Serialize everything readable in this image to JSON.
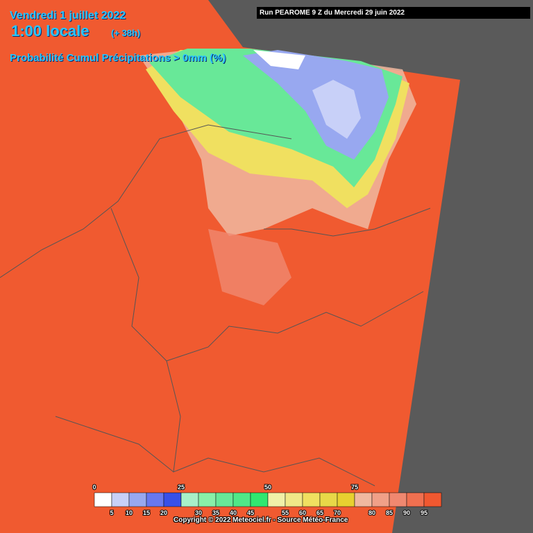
{
  "header": {
    "date": "Vendredi 1 juillet 2022",
    "time": "1:00 locale",
    "lead": "(+ 38h)",
    "product": "Probabilité Cumul Précipitations > 0mm (%)",
    "run": "Run PEAROME 9 Z du Mercredi 29 juin 2022"
  },
  "legend": {
    "colors": [
      "#ffffff",
      "#c8d0f8",
      "#98a8f0",
      "#6878f0",
      "#3850e8",
      "#a8f0c8",
      "#88f0a8",
      "#68e898",
      "#50e888",
      "#30e870",
      "#f0f0a8",
      "#f0e888",
      "#f0e060",
      "#e8d848",
      "#e8d030",
      "#f0b8a0",
      "#f0a088",
      "#f08870",
      "#f07050",
      "#f05830"
    ],
    "top_labels": [
      "0",
      "25",
      "50",
      "75"
    ],
    "bottom_labels": [
      "5",
      "10",
      "15",
      "20",
      "30",
      "35",
      "40",
      "45",
      "55",
      "60",
      "65",
      "70",
      "80",
      "85",
      "90",
      "95"
    ]
  },
  "footer": {
    "copyright": "Copyright © 2022 Meteociel.fr - Source Météo-France"
  }
}
